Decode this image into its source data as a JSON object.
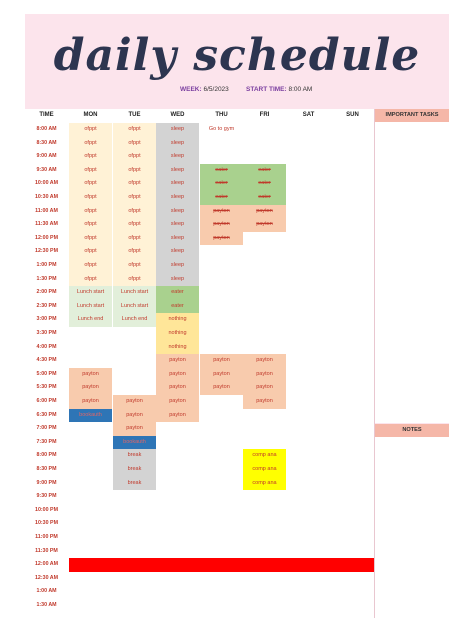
{
  "title": "daily schedule",
  "week": {
    "label": "WEEK:",
    "value": "6/5/2023"
  },
  "start_time": {
    "label": "START TIME:",
    "value": "8:00 AM"
  },
  "days": [
    "TIME",
    "MON",
    "TUE",
    "WED",
    "THU",
    "FRI",
    "SAT",
    "SUN"
  ],
  "times": [
    "8:00 AM",
    "8:30 AM",
    "9:00 AM",
    "9:30 AM",
    "10:00 AM",
    "10:30 AM",
    "11:00 AM",
    "11:30 AM",
    "12:00 PM",
    "12:30 PM",
    "1:00 PM",
    "1:30 PM",
    "2:00 PM",
    "2:30 PM",
    "3:00 PM",
    "3:30 PM",
    "4:00 PM",
    "4:30 PM",
    "5:00 PM",
    "5:30 PM",
    "6:00 PM",
    "6:30 PM",
    "7:00 PM",
    "7:30 PM",
    "8:00 PM",
    "8:30 PM",
    "9:00 PM",
    "9:30 PM",
    "10:00 PM",
    "10:30 PM",
    "11:00 PM",
    "11:30 PM",
    "12:00 AM",
    "12:30 AM",
    "1:00 AM",
    "1:30 AM"
  ],
  "events": [
    {
      "day": 1,
      "row": 0,
      "span": 12,
      "label": "ofppt",
      "text": "#c0392b",
      "fill": "#fff2d6",
      "strike": false
    },
    {
      "day": 2,
      "row": 0,
      "span": 12,
      "label": "ofppt",
      "text": "#c0392b",
      "fill": "#fff2d6",
      "strike": false
    },
    {
      "day": 3,
      "row": 0,
      "span": 12,
      "label": "sleep",
      "text": "#c0392b",
      "fill": "#d3d3d3",
      "strike": false
    },
    {
      "day": 4,
      "row": 0,
      "span": 1,
      "label": "Go to gym",
      "text": "#c0392b",
      "fill": "",
      "strike": false
    },
    {
      "day": 4,
      "row": 3,
      "span": 3,
      "label": "eater",
      "text": "#c0392b",
      "fill": "#a9d18e",
      "strike": true
    },
    {
      "day": 5,
      "row": 3,
      "span": 3,
      "label": "eater",
      "text": "#c0392b",
      "fill": "#a9d18e",
      "strike": true
    },
    {
      "day": 4,
      "row": 6,
      "span": 3,
      "label": "payton",
      "text": "#c0392b",
      "fill": "#f8cbad",
      "strike": true
    },
    {
      "day": 5,
      "row": 6,
      "span": 2,
      "label": "payton",
      "text": "#c0392b",
      "fill": "#f8cbad",
      "strike": true
    },
    {
      "day": 1,
      "row": 12,
      "span": 3,
      "label": "Lunch start",
      "text": "#c0392b",
      "fill": "#e2efda",
      "strike": false
    },
    {
      "day": 2,
      "row": 12,
      "span": 3,
      "label": "Lunch start",
      "text": "#c0392b",
      "fill": "#e2efda",
      "strike": false
    },
    {
      "day": 3,
      "row": 12,
      "span": 2,
      "label": "eater",
      "text": "#c0392b",
      "fill": "#a9d18e",
      "strike": false
    },
    {
      "day": 3,
      "row": 14,
      "span": 3,
      "label": "nothing",
      "text": "#c0392b",
      "fill": "#ffe699",
      "strike": false
    },
    {
      "day": 3,
      "row": 17,
      "span": 5,
      "label": "payton",
      "text": "#c0392b",
      "fill": "#f8cbad",
      "strike": false
    },
    {
      "day": 4,
      "row": 17,
      "span": 3,
      "label": "payton",
      "text": "#c0392b",
      "fill": "#f8cbad",
      "strike": false
    },
    {
      "day": 5,
      "row": 17,
      "span": 4,
      "label": "payton",
      "text": "#c0392b",
      "fill": "#f8cbad",
      "strike": false
    },
    {
      "day": 1,
      "row": 18,
      "span": 3,
      "label": "payton",
      "text": "#c0392b",
      "fill": "#f8cbad",
      "strike": false
    },
    {
      "day": 2,
      "row": 20,
      "span": 3,
      "label": "payton",
      "text": "#c0392b",
      "fill": "#f8cbad",
      "strike": false
    },
    {
      "day": 1,
      "row": 21,
      "span": 1,
      "label": "bookauth",
      "text": "#e06666",
      "fill": "#2e75b6",
      "strike": false
    },
    {
      "day": 2,
      "row": 23,
      "span": 1,
      "label": "bookauth",
      "text": "#e06666",
      "fill": "#2e75b6",
      "strike": false
    },
    {
      "day": 2,
      "row": 24,
      "span": 3,
      "label": "break",
      "text": "#c0392b",
      "fill": "#d3d3d3",
      "strike": false
    },
    {
      "day": 5,
      "row": 24,
      "span": 3,
      "label": "comp ana",
      "text": "#c0392b",
      "fill": "#ffff00",
      "strike": false
    },
    {
      "day": 1,
      "row": 32,
      "span": 1,
      "label": "",
      "text": "#c0392b",
      "fill": "#ff0000",
      "strike": false,
      "full": true
    }
  ],
  "row_labels": {
    "1-12": [
      "ofppt",
      "ofppt",
      "ofppt",
      "ofppt",
      "ofppt",
      "ofppt",
      "ofppt",
      "ofppt",
      "ofppt",
      "ofppt",
      "ofppt",
      "ofppt"
    ],
    "1-lunch": [
      "Lunch start",
      "Lunch start",
      "Lunch end"
    ],
    "2-lunch": [
      "Lunch start",
      "Lunch start",
      "Lunch end"
    ]
  },
  "sidebar": {
    "tasks_label": "IMPORTANT TASKS",
    "notes_label": "NOTES"
  }
}
